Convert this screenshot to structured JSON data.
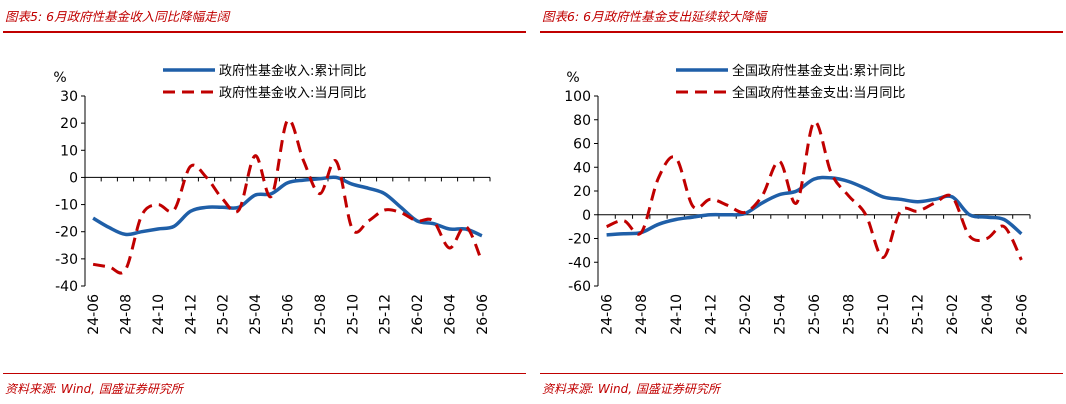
{
  "panels": [
    {
      "title": "图表5:  6月政府性基金收入同比降幅走阔",
      "source": "资料来源: Wind, 国盛证券研究所"
    },
    {
      "title": "图表6:  6月政府性基金支出延续较大降幅",
      "source": "资料来源: Wind, 国盛证券研究所"
    }
  ],
  "colors": {
    "accent": "#c00000",
    "series_cumulative": "#1f5fa8",
    "series_monthly": "#c00000"
  },
  "chart_data": [
    {
      "type": "line",
      "ylabel": "%",
      "ylim": [
        -40,
        30
      ],
      "yticks": [
        30,
        20,
        10,
        0,
        -10,
        -20,
        -30,
        -40
      ],
      "x": [
        "24-06",
        "24-07",
        "24-08",
        "24-09",
        "24-10",
        "24-11",
        "24-12",
        "25-01",
        "25-02",
        "25-03",
        "25-04",
        "25-05",
        "25-06",
        "25-07",
        "25-08",
        "25-09",
        "25-10",
        "25-11",
        "25-12",
        "26-01",
        "26-02",
        "26-03",
        "26-04",
        "26-05",
        "26-06"
      ],
      "xtick_labels": [
        "24-06",
        "24-08",
        "24-10",
        "24-12",
        "25-02",
        "25-04",
        "25-06",
        "25-08",
        "25-10",
        "25-12",
        "26-02",
        "26-04",
        "26-06"
      ],
      "legend_position": "top",
      "series": [
        {
          "name": "政府性基金收入:累计同比",
          "style": "solid",
          "values": [
            -15,
            -18.5,
            -21,
            -20,
            -19,
            -18,
            -12.5,
            -11,
            -11,
            -11,
            -6.5,
            -6,
            -2,
            -1,
            -0.5,
            0,
            -2.5,
            -4,
            -6,
            -11,
            -16,
            -17,
            -19,
            -19,
            -21.5
          ]
        },
        {
          "name": "政府性基金收入:当月同比",
          "style": "dashed",
          "values": [
            -32,
            -33,
            -34,
            -14,
            -10,
            -12,
            4,
            0,
            -8,
            -12,
            8,
            -7,
            21,
            6,
            -6,
            6,
            -19,
            -16,
            -12,
            -13,
            -16,
            -16,
            -26,
            -18,
            -31
          ]
        }
      ]
    },
    {
      "type": "line",
      "ylabel": "%",
      "ylim": [
        -60,
        100
      ],
      "yticks": [
        100,
        80,
        60,
        40,
        20,
        0,
        -20,
        -40,
        -60
      ],
      "x": [
        "24-06",
        "24-07",
        "24-08",
        "24-09",
        "24-10",
        "24-11",
        "24-12",
        "25-01",
        "25-02",
        "25-03",
        "25-04",
        "25-05",
        "25-06",
        "25-07",
        "25-08",
        "25-09",
        "25-10",
        "25-11",
        "25-12",
        "26-01",
        "26-02",
        "26-03",
        "26-04",
        "26-05",
        "26-06"
      ],
      "xtick_labels": [
        "24-06",
        "24-08",
        "24-10",
        "24-12",
        "25-02",
        "25-04",
        "25-06",
        "25-08",
        "25-10",
        "25-12",
        "26-02",
        "26-04",
        "26-06"
      ],
      "legend_position": "top",
      "series": [
        {
          "name": "全国政府性基金支出:累计同比",
          "style": "solid",
          "values": [
            -17,
            -16,
            -15,
            -8,
            -4,
            -2,
            0,
            0,
            1,
            10,
            17,
            20,
            30,
            31,
            28,
            22,
            15,
            13,
            11,
            13,
            15,
            0,
            -2,
            -4,
            -16
          ]
        },
        {
          "name": "全国政府性基金支出:当月同比",
          "style": "dashed",
          "values": [
            -10,
            -5,
            -15,
            31,
            48,
            7,
            13,
            8,
            2,
            16,
            45,
            10,
            78,
            35,
            16,
            0,
            -36,
            3,
            3,
            10,
            15,
            -18,
            -20,
            -10,
            -38
          ]
        }
      ]
    }
  ]
}
